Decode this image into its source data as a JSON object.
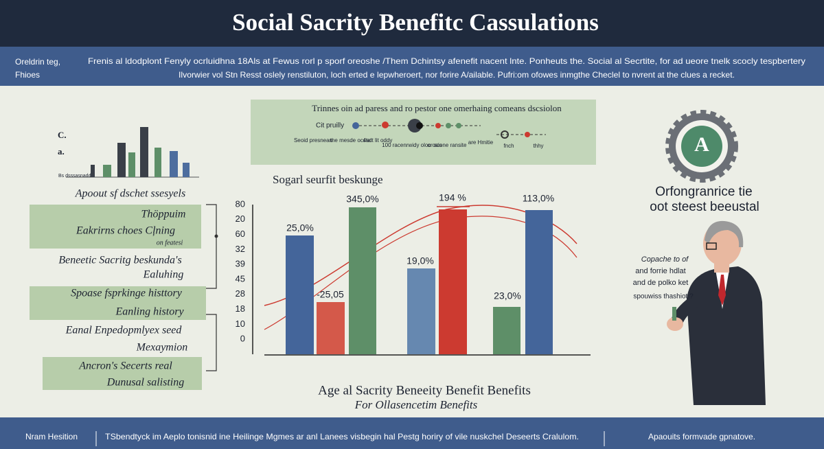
{
  "header": {
    "title": "Social Sacrity Benefitc Cassulations"
  },
  "intro": {
    "label": [
      "Oreldrin teg,",
      "Fhioes"
    ],
    "text": [
      "Frenis al ldodplont Fenyly ocrluidhna 18Als at Fewus rorl p sporf oreoshe /Them Dchintsy afenefit nacent lnte. Ponheuts the. Social al Secrtite, for ad ueore tnelk scocly tespbertery",
      "Ilvorwier vol Stn Resst oslely renstiluton, loch erted e lepwheroert, nor forire A/ailable. Pufri:om ofowes inmgthe Checlel to nvrent at the clues a recket."
    ]
  },
  "left": {
    "mini_chart": {
      "labels": [
        "C.",
        "a."
      ],
      "axis_label": "Bs dsssasnadd"
    },
    "caption": "Apoout sf dschet ssesyels",
    "box_1": [
      "Thöppuim",
      "Eakrirns choes Cļning",
      "on featesi"
    ],
    "text_1": [
      "Beneetic Sacritg beskunda's",
      "Ealuhing"
    ],
    "box_2": [
      "Spoase fsprkinge histtory",
      "Eanling history"
    ],
    "text_2": [
      "Eanal Enpedopmlyex seed",
      "Mexaymion"
    ],
    "box_3": [
      "Ancron's Secerts real",
      "Dunusal salisting"
    ]
  },
  "timeline": {
    "title": "Trinnes oin ad paress and ro pestor one omerhaing comeans dscsiolon",
    "start": "Cit pruilly",
    "labels": [
      "Seoid presnean",
      "the mesde ocstal",
      "4act lit oddy",
      "100 racenrwidy oloc osis",
      "or scone ransite",
      "are Hmitie",
      "fnch",
      "thhy"
    ]
  },
  "chart": {
    "title": "Sogarl seurfit beskunge",
    "axis_labels": [
      "80",
      "20",
      "60",
      "32",
      "39",
      "45",
      "28",
      "18",
      "10",
      "0"
    ],
    "bar_labels": [
      "25,0%",
      "-25,05",
      "345,0%",
      "19,0%",
      "194 %",
      "23,0%",
      "113,0%"
    ],
    "footer_title": "Age al Sacrity Beneeity Benefit Benefits",
    "footer_subtitle": "For Ollasencetim Benefits"
  },
  "right": {
    "badge": "A",
    "title": [
      "Orfongranrice tie",
      "oot steest beeustal"
    ],
    "speech": [
      "Copache to of",
      "and forrie hdlat",
      "and de polko ket",
      "spouwiss thashiot ?"
    ]
  },
  "footer": {
    "left": "Nram Hesition",
    "center": "TSbendtyck im Aeplo tonisnid ine Heilinge Mgmes ar anl Lanees visbegin hal Pestg horiry of vile nuskchel Deseerts Cralulom.",
    "right": "Apaouits formvade gpnatove."
  }
}
